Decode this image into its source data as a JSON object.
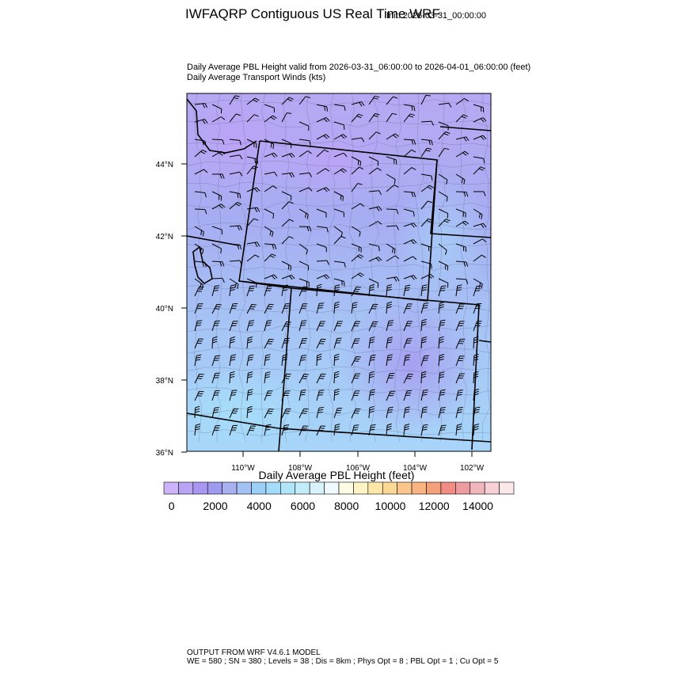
{
  "header": {
    "title": "IWFAQRP Contiguous US Real Time WRF",
    "init_time": "Init: 2026-03-31_00:00:00",
    "subtitle_line1": "Daily Average PBL Height valid from 2026-03-31_06:00:00 to 2026-04-01_06:00:00   (feet)",
    "subtitle_line2": "Daily Average Transport Winds   (kts)"
  },
  "map": {
    "lat_labels": [
      "44°N",
      "42°N",
      "40°N",
      "38°N",
      "36°N"
    ],
    "lon_labels": [
      "110°W",
      "108°W",
      "106°W",
      "104°W",
      "102°W"
    ],
    "lat_values": [
      44,
      42,
      40,
      38,
      36
    ],
    "lon_values": [
      -110,
      -108,
      -106,
      -104,
      -102
    ]
  },
  "colorbar": {
    "title": "Daily Average PBL Height  (feet)",
    "labels": [
      "0",
      "2000",
      "4000",
      "6000",
      "8000",
      "10000",
      "12000",
      "14000"
    ],
    "colors": [
      "#cdb4fa",
      "#b9a3f5",
      "#a996f0",
      "#9d9af0",
      "#a7b1f0",
      "#a3c1f5",
      "#9ccff7",
      "#a2dcf8",
      "#b0e5fa",
      "#c3ecfb",
      "#d8f3fd",
      "#eefafe",
      "#fdfbe4",
      "#fdf3c4",
      "#fde8a8",
      "#fcd895",
      "#fbc68b",
      "#f9b482",
      "#f5a07c",
      "#f08c84",
      "#ec9ca0",
      "#f0b6bc",
      "#f6d0d4",
      "#fbe6e8"
    ]
  },
  "footer": {
    "line1": "OUTPUT FROM WRF V4.6.1 MODEL",
    "line2": "WE = 580 ; SN = 380 ; Levels = 38 ; Dis = 8km ; Phys Opt = 8 ; PBL Opt = 1 ; Cu Opt = 5"
  }
}
